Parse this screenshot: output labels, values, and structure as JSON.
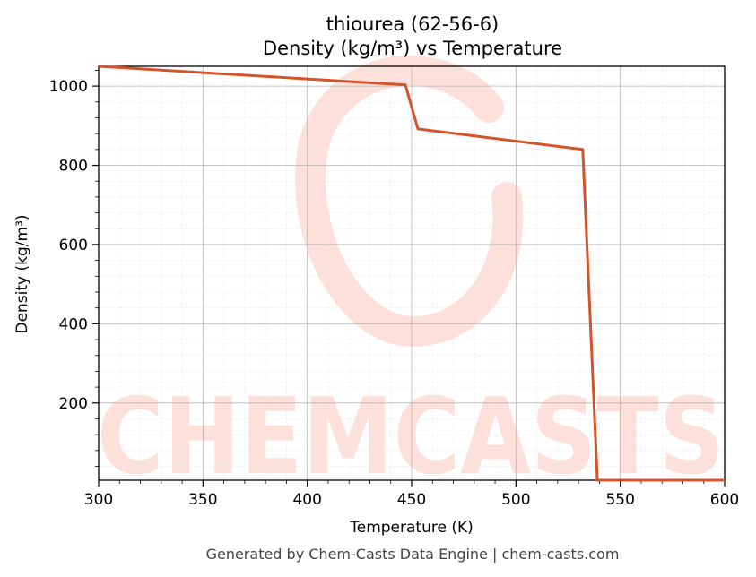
{
  "chart_data": {
    "type": "line",
    "title": "thiourea (62-56-6)",
    "subtitle": "Density (kg/m³) vs Temperature",
    "xlabel": "Temperature (K)",
    "ylabel": "Density (kg/m³)",
    "xlim": [
      300,
      600
    ],
    "ylim": [
      5,
      1050
    ],
    "xticks": [
      300,
      350,
      400,
      450,
      500,
      550,
      600
    ],
    "yticks": [
      200,
      400,
      600,
      800,
      1000
    ],
    "grid": true,
    "series": [
      {
        "color": "#d4542a",
        "x": [
          300,
          447,
          453,
          532,
          539,
          600
        ],
        "y": [
          1050,
          1003,
          892,
          840,
          5,
          5
        ]
      }
    ]
  },
  "watermark": {
    "text": "CHEMCASTS",
    "color": "#fde0da"
  },
  "footer": "Generated by Chem-Casts Data Engine | chem-casts.com"
}
